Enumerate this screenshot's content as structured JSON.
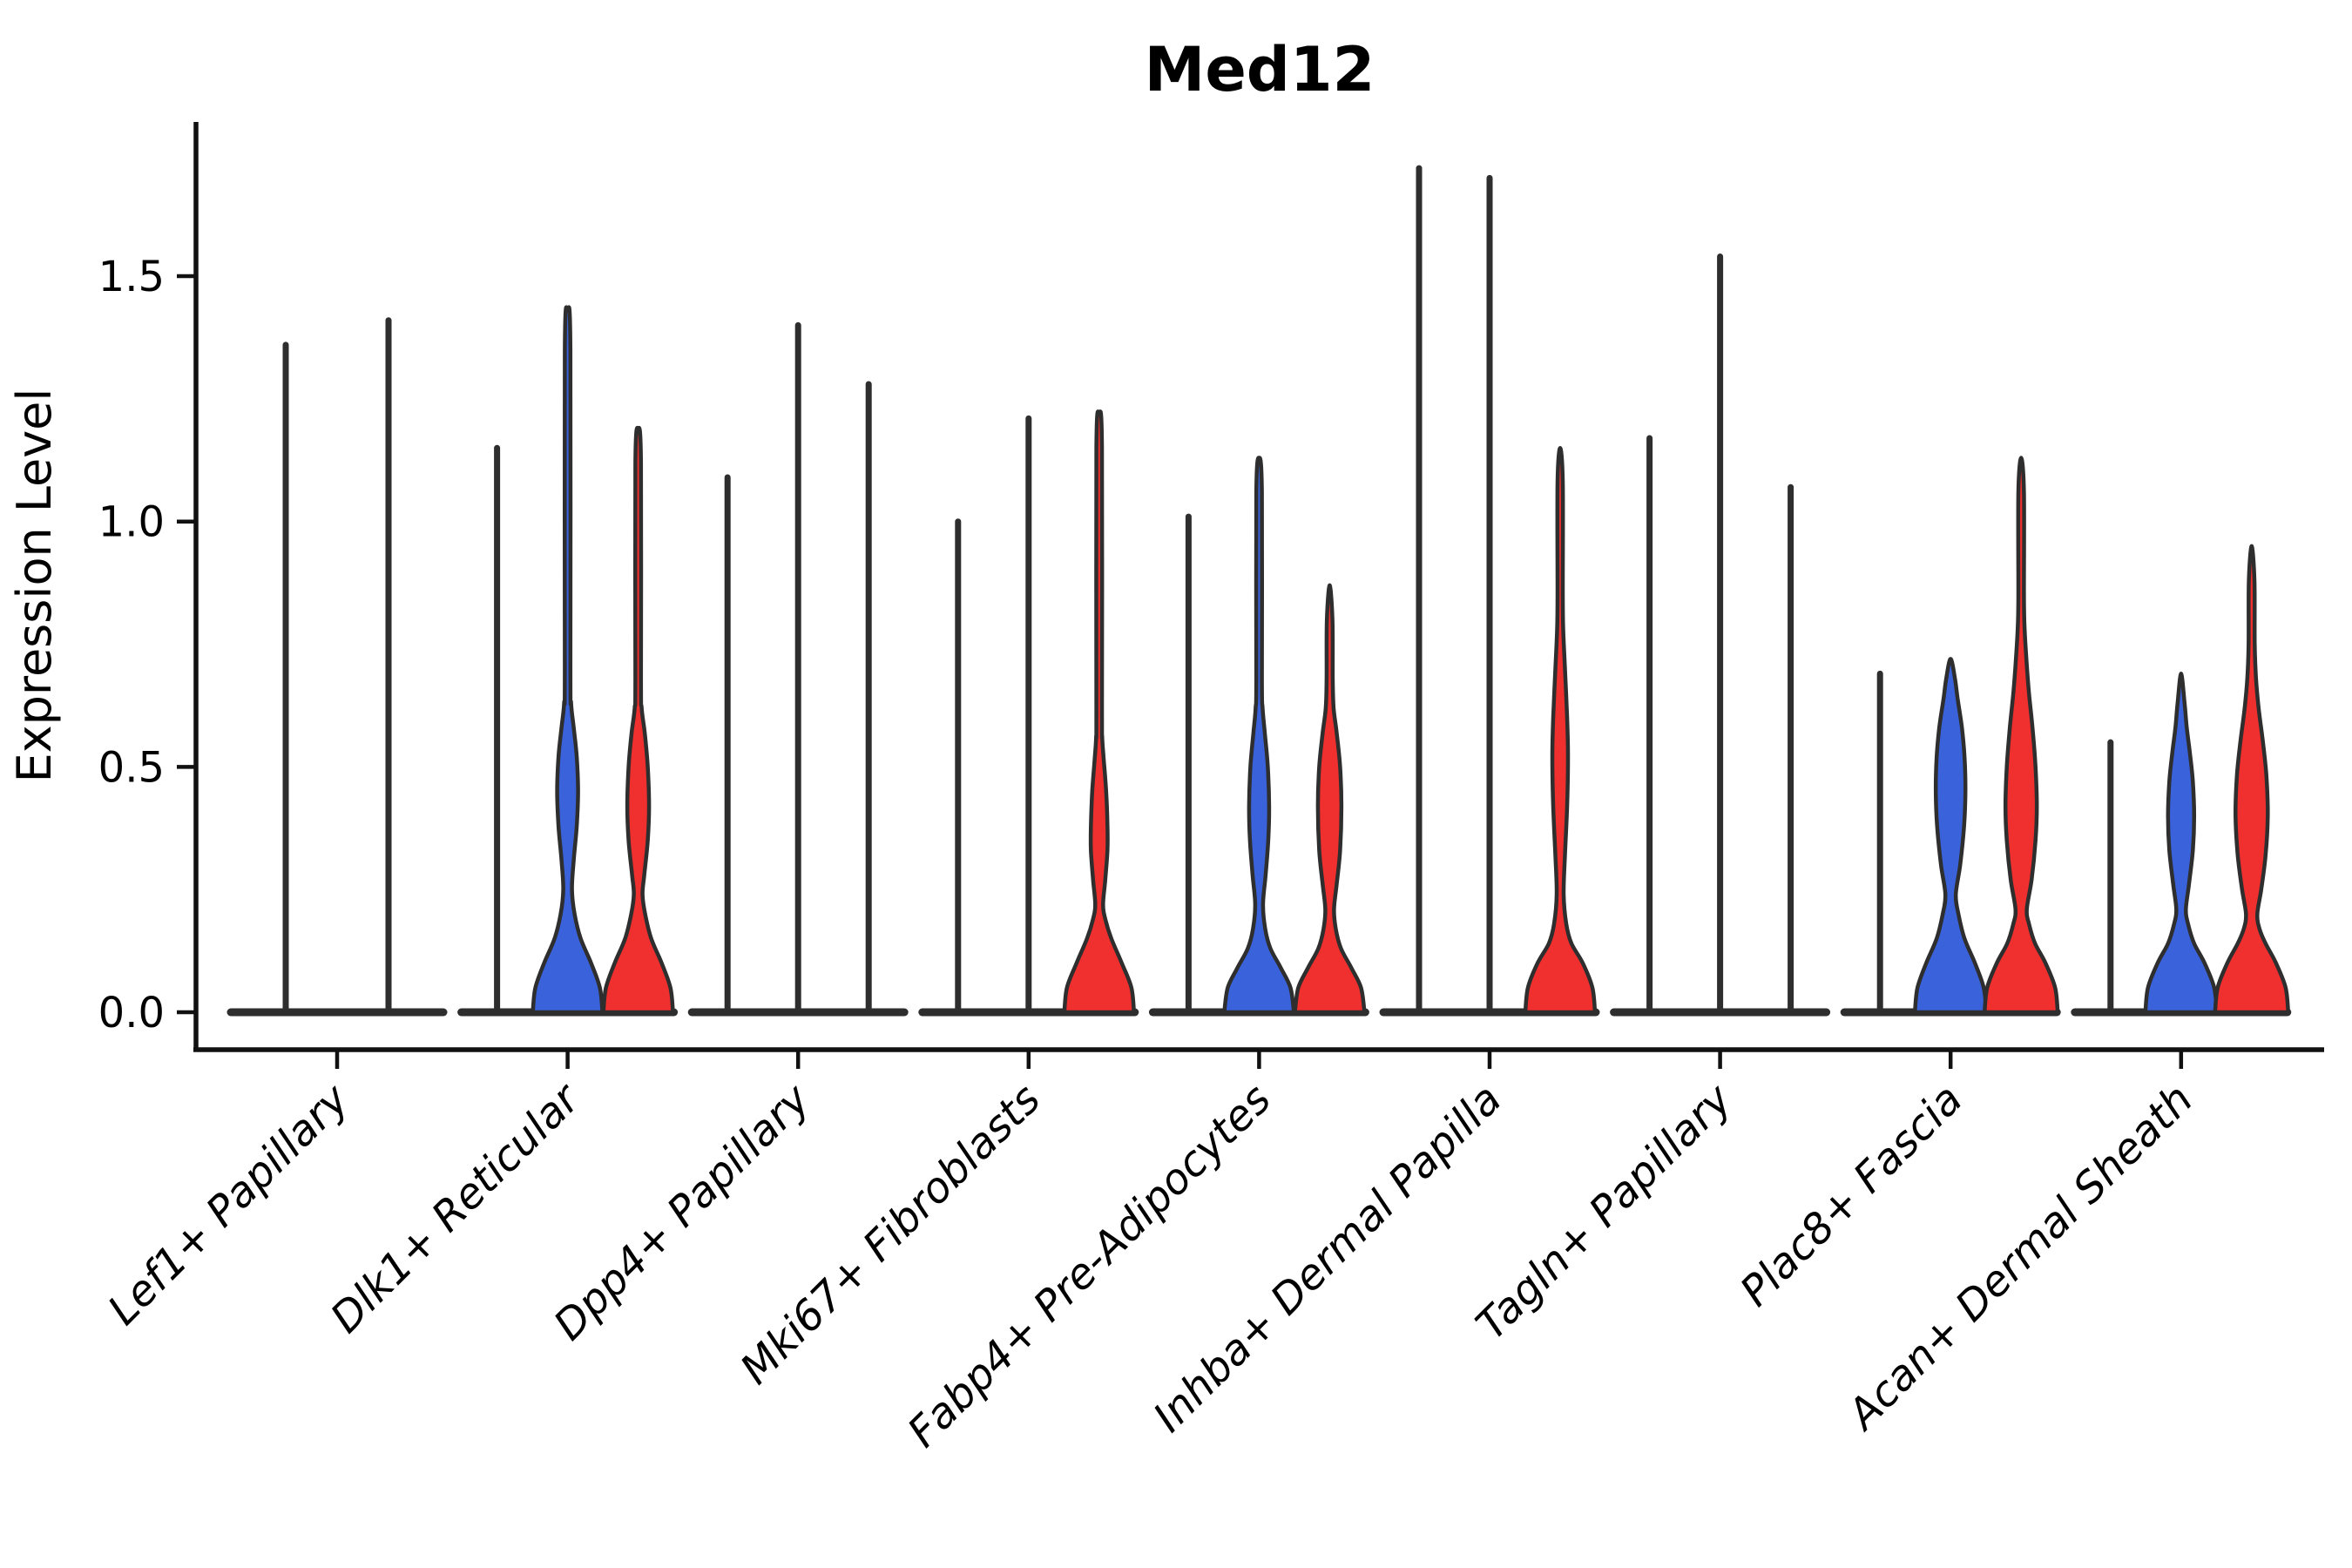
{
  "chart_data": {
    "type": "violin",
    "title": "Med12",
    "ylabel": "Expression Level",
    "xlabel": "",
    "ylim": [
      -0.08,
      1.81
    ],
    "grid": false,
    "legend": false,
    "yticks": [
      {
        "value": 0.0,
        "label": "0.0"
      },
      {
        "value": 0.5,
        "label": "0.5"
      },
      {
        "value": 1.0,
        "label": "1.0"
      },
      {
        "value": 1.5,
        "label": "1.5"
      }
    ],
    "colors": {
      "blue": "#3A63DB",
      "red": "#F02F2F",
      "outline": "#2E2E2E",
      "axis": "#111111"
    },
    "categories": [
      "Lef1+ Papillary",
      "Dlk1+ Reticular",
      "Dpp4+ Papillary",
      "Mki67+ Fibroblasts",
      "Fabp4+ Pre-Adipocytes",
      "Inhba+ Dermal Papilla",
      "Tagln+ Papillary",
      "Plac8+ Fascia",
      "Acan+ Dermal Sheath"
    ],
    "groups": [
      {
        "label": "Lef1+ Papillary",
        "violins": [
          {
            "offset": -59,
            "fill": null,
            "max": 1.36,
            "profile": null
          },
          {
            "offset": 59,
            "fill": null,
            "max": 1.41,
            "profile": null
          }
        ]
      },
      {
        "label": "Dlk1+ Reticular",
        "violins": [
          {
            "offset": -81,
            "fill": null,
            "max": 1.15,
            "profile": null
          },
          {
            "offset": 0,
            "fill": "blue",
            "max": 1.43,
            "profile": [
              [
                0,
                40
              ],
              [
                0.05,
                37
              ],
              [
                0.1,
                27
              ],
              [
                0.15,
                15
              ],
              [
                0.2,
                8
              ],
              [
                0.25,
                5
              ],
              [
                0.31,
                7
              ],
              [
                0.38,
                10.5
              ],
              [
                0.45,
                12
              ],
              [
                0.52,
                10.5
              ],
              [
                0.58,
                7
              ],
              [
                0.63,
                4
              ],
              [
                0.7,
                3.2
              ],
              [
                1.35,
                3.2
              ],
              [
                1.43,
                0
              ]
            ]
          },
          {
            "offset": 81,
            "fill": "red",
            "max": 1.19,
            "profile": [
              [
                0,
                40
              ],
              [
                0.05,
                37
              ],
              [
                0.1,
                27
              ],
              [
                0.15,
                15
              ],
              [
                0.2,
                8
              ],
              [
                0.24,
                5
              ],
              [
                0.28,
                7
              ],
              [
                0.35,
                11
              ],
              [
                0.42,
                12.5
              ],
              [
                0.5,
                11
              ],
              [
                0.57,
                7.5
              ],
              [
                0.62,
                4
              ],
              [
                0.68,
                3.2
              ],
              [
                1.12,
                3.2
              ],
              [
                1.19,
                0
              ]
            ]
          }
        ]
      },
      {
        "label": "Dpp4+ Papillary",
        "violins": [
          {
            "offset": -81,
            "fill": null,
            "max": 1.09,
            "profile": null
          },
          {
            "offset": 0,
            "fill": null,
            "max": 1.4,
            "profile": null
          },
          {
            "offset": 81,
            "fill": null,
            "max": 1.28,
            "profile": null
          }
        ]
      },
      {
        "label": "Mki67+ Fibroblasts",
        "violins": [
          {
            "offset": -81,
            "fill": null,
            "max": 1.0,
            "profile": null
          },
          {
            "offset": 0,
            "fill": null,
            "max": 1.21,
            "profile": null
          },
          {
            "offset": 81,
            "fill": "red",
            "max": 1.22,
            "profile": [
              [
                0,
                40
              ],
              [
                0.05,
                37
              ],
              [
                0.1,
                26
              ],
              [
                0.15,
                14
              ],
              [
                0.19,
                7
              ],
              [
                0.22,
                4.5
              ],
              [
                0.27,
                7
              ],
              [
                0.33,
                9.5
              ],
              [
                0.38,
                9.5
              ],
              [
                0.45,
                8
              ],
              [
                0.52,
                5
              ],
              [
                0.56,
                3.5
              ],
              [
                0.62,
                3.2
              ],
              [
                1.15,
                3.2
              ],
              [
                1.22,
                0
              ]
            ]
          }
        ]
      },
      {
        "label": "Fabp4+ Pre-Adipocytes",
        "violins": [
          {
            "offset": -81,
            "fill": null,
            "max": 1.01,
            "profile": null
          },
          {
            "offset": 0,
            "fill": "blue",
            "max": 1.13,
            "profile": [
              [
                0,
                40
              ],
              [
                0.05,
                36
              ],
              [
                0.09,
                25
              ],
              [
                0.13,
                13
              ],
              [
                0.17,
                7
              ],
              [
                0.22,
                4.5
              ],
              [
                0.28,
                7.5
              ],
              [
                0.35,
                10.5
              ],
              [
                0.42,
                11.5
              ],
              [
                0.5,
                10
              ],
              [
                0.57,
                6.5
              ],
              [
                0.62,
                4
              ],
              [
                0.68,
                3.2
              ],
              [
                1.06,
                3.2
              ],
              [
                1.13,
                0
              ]
            ]
          },
          {
            "offset": 81,
            "fill": "red",
            "max": 0.87,
            "profile": [
              [
                0,
                40
              ],
              [
                0.05,
                36
              ],
              [
                0.09,
                25
              ],
              [
                0.13,
                13
              ],
              [
                0.17,
                7
              ],
              [
                0.21,
                5
              ],
              [
                0.26,
                8
              ],
              [
                0.33,
                12
              ],
              [
                0.42,
                13.5
              ],
              [
                0.5,
                12
              ],
              [
                0.57,
                8
              ],
              [
                0.62,
                4.5
              ],
              [
                0.68,
                3.5
              ],
              [
                0.8,
                3.2
              ],
              [
                0.87,
                0
              ]
            ]
          }
        ]
      },
      {
        "label": "Inhba+ Dermal Papilla",
        "violins": [
          {
            "offset": -81,
            "fill": null,
            "max": 1.72,
            "profile": null
          },
          {
            "offset": 0,
            "fill": null,
            "max": 1.7,
            "profile": null
          },
          {
            "offset": 81,
            "fill": "red",
            "max": 1.15,
            "profile": [
              [
                0,
                40
              ],
              [
                0.05,
                37
              ],
              [
                0.1,
                26
              ],
              [
                0.14,
                13
              ],
              [
                0.18,
                7
              ],
              [
                0.24,
                4
              ],
              [
                0.32,
                5.5
              ],
              [
                0.42,
                8
              ],
              [
                0.52,
                9
              ],
              [
                0.6,
                8
              ],
              [
                0.7,
                5.5
              ],
              [
                0.78,
                3.5
              ],
              [
                0.85,
                3
              ],
              [
                1.08,
                3
              ],
              [
                1.15,
                0
              ]
            ]
          }
        ]
      },
      {
        "label": "Tagln+ Papillary",
        "violins": [
          {
            "offset": -81,
            "fill": null,
            "max": 1.17,
            "profile": null
          },
          {
            "offset": 0,
            "fill": null,
            "max": 1.54,
            "profile": null
          },
          {
            "offset": 81,
            "fill": null,
            "max": 1.07,
            "profile": null
          }
        ]
      },
      {
        "label": "Plac8+ Fascia",
        "violins": [
          {
            "offset": -81,
            "fill": null,
            "max": 0.69,
            "profile": null
          },
          {
            "offset": 0,
            "fill": "blue",
            "max": 0.72,
            "profile": [
              [
                0,
                41
              ],
              [
                0.05,
                38
              ],
              [
                0.1,
                28
              ],
              [
                0.15,
                16
              ],
              [
                0.2,
                9
              ],
              [
                0.24,
                6
              ],
              [
                0.3,
                11
              ],
              [
                0.38,
                15.5
              ],
              [
                0.45,
                17
              ],
              [
                0.52,
                16
              ],
              [
                0.58,
                13
              ],
              [
                0.64,
                8
              ],
              [
                0.68,
                5
              ],
              [
                0.72,
                0
              ]
            ]
          },
          {
            "offset": 81,
            "fill": "red",
            "max": 1.13,
            "profile": [
              [
                0,
                42
              ],
              [
                0.05,
                39
              ],
              [
                0.1,
                28
              ],
              [
                0.14,
                16
              ],
              [
                0.18,
                9
              ],
              [
                0.21,
                6.5
              ],
              [
                0.27,
                12
              ],
              [
                0.35,
                16.5
              ],
              [
                0.42,
                18
              ],
              [
                0.5,
                16.5
              ],
              [
                0.58,
                13
              ],
              [
                0.65,
                9
              ],
              [
                0.72,
                6
              ],
              [
                0.78,
                4
              ],
              [
                0.85,
                3.2
              ],
              [
                1.06,
                3.2
              ],
              [
                1.13,
                0
              ]
            ]
          }
        ]
      },
      {
        "label": "Acan+ Dermal Sheath",
        "violins": [
          {
            "offset": -81,
            "fill": null,
            "max": 0.55,
            "profile": null
          },
          {
            "offset": 0,
            "fill": "blue",
            "max": 0.69,
            "profile": [
              [
                0,
                41
              ],
              [
                0.05,
                38
              ],
              [
                0.1,
                27
              ],
              [
                0.14,
                15
              ],
              [
                0.18,
                8
              ],
              [
                0.21,
                5.5
              ],
              [
                0.26,
                9
              ],
              [
                0.33,
                13.5
              ],
              [
                0.4,
                15
              ],
              [
                0.47,
                13.5
              ],
              [
                0.53,
                10
              ],
              [
                0.58,
                6.5
              ],
              [
                0.63,
                4
              ],
              [
                0.69,
                0
              ]
            ]
          },
          {
            "offset": 81,
            "fill": "red",
            "max": 0.95,
            "profile": [
              [
                0,
                42
              ],
              [
                0.05,
                39
              ],
              [
                0.1,
                28
              ],
              [
                0.14,
                16
              ],
              [
                0.17,
                9
              ],
              [
                0.2,
                6.5
              ],
              [
                0.25,
                11
              ],
              [
                0.32,
                16
              ],
              [
                0.4,
                18.5
              ],
              [
                0.48,
                17
              ],
              [
                0.55,
                13
              ],
              [
                0.62,
                8
              ],
              [
                0.68,
                5
              ],
              [
                0.75,
                3.5
              ],
              [
                0.88,
                3.2
              ],
              [
                0.95,
                0
              ]
            ]
          }
        ]
      }
    ]
  }
}
